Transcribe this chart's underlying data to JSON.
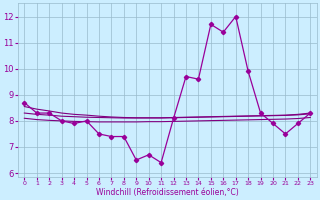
{
  "x": [
    0,
    1,
    2,
    3,
    4,
    5,
    6,
    7,
    8,
    9,
    10,
    11,
    12,
    13,
    14,
    15,
    16,
    17,
    18,
    19,
    20,
    21,
    22,
    23
  ],
  "windchill": [
    8.7,
    8.3,
    8.3,
    8.0,
    7.9,
    8.0,
    7.5,
    7.4,
    7.4,
    6.5,
    6.7,
    6.4,
    8.1,
    9.7,
    9.6,
    11.7,
    11.4,
    12.0,
    9.9,
    8.3,
    7.9,
    7.5,
    7.9,
    8.3
  ],
  "line1": [
    8.55,
    8.45,
    8.38,
    8.3,
    8.25,
    8.22,
    8.18,
    8.15,
    8.13,
    8.12,
    8.12,
    8.12,
    8.13,
    8.14,
    8.15,
    8.16,
    8.17,
    8.18,
    8.19,
    8.2,
    8.21,
    8.22,
    8.25,
    8.3
  ],
  "line2": [
    8.3,
    8.25,
    8.22,
    8.18,
    8.16,
    8.14,
    8.13,
    8.12,
    8.11,
    8.11,
    8.11,
    8.11,
    8.12,
    8.13,
    8.14,
    8.15,
    8.16,
    8.17,
    8.18,
    8.19,
    8.2,
    8.21,
    8.23,
    8.27
  ],
  "line3": [
    8.1,
    8.05,
    8.02,
    8.0,
    7.98,
    7.97,
    7.96,
    7.96,
    7.96,
    7.96,
    7.97,
    7.97,
    7.98,
    7.99,
    8.0,
    8.01,
    8.02,
    8.03,
    8.04,
    8.05,
    8.06,
    8.07,
    8.09,
    8.13
  ],
  "color_main": "#990099",
  "color_line": "#800080",
  "bg_color": "#cceeff",
  "grid_color": "#99bbcc",
  "xlim": [
    -0.5,
    23.5
  ],
  "ylim": [
    5.85,
    12.5
  ],
  "yticks": [
    6,
    7,
    8,
    9,
    10,
    11,
    12
  ],
  "xlabel": "Windchill (Refroidissement éolien,°C)"
}
